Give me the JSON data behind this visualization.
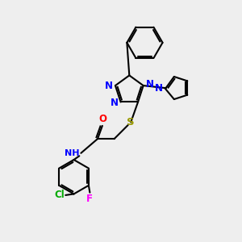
{
  "bg_color": "#eeeeee",
  "bond_color": "#000000",
  "N_color": "#0000ff",
  "O_color": "#ff0000",
  "S_color": "#999900",
  "Cl_color": "#00aa00",
  "F_color": "#ff00ff",
  "line_width": 1.5,
  "font_size": 8.5,
  "fig_width": 3.0,
  "fig_height": 3.0,
  "dpi": 100,
  "xlim": [
    0,
    10
  ],
  "ylim": [
    0,
    10
  ]
}
